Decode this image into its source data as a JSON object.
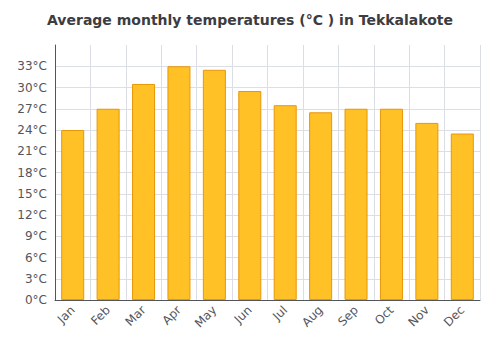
{
  "chart_data": {
    "type": "bar",
    "title": "Average monthly temperatures (°C ) in Tekkalakote",
    "categories": [
      "Jan",
      "Feb",
      "Mar",
      "Apr",
      "May",
      "Jun",
      "Jul",
      "Aug",
      "Sep",
      "Oct",
      "Nov",
      "Dec"
    ],
    "values": [
      24,
      27,
      30.5,
      33,
      32.5,
      29.5,
      27.5,
      26.5,
      27,
      27,
      25,
      23.5
    ],
    "color": "#FFC125",
    "ylim": [
      0,
      36
    ],
    "yticks": [
      {
        "value": 0,
        "label": "0°C"
      },
      {
        "value": 3,
        "label": "3°C"
      },
      {
        "value": 6,
        "label": "6°C"
      },
      {
        "value": 9,
        "label": "9°C"
      },
      {
        "value": 12,
        "label": "12°C"
      },
      {
        "value": 15,
        "label": "15°C"
      },
      {
        "value": 18,
        "label": "18°C"
      },
      {
        "value": 21,
        "label": "21°C"
      },
      {
        "value": 24,
        "label": "24°C"
      },
      {
        "value": 27,
        "label": "27°C"
      },
      {
        "value": 30,
        "label": "30°C"
      },
      {
        "value": 33,
        "label": "33°C"
      }
    ],
    "grid": true
  }
}
